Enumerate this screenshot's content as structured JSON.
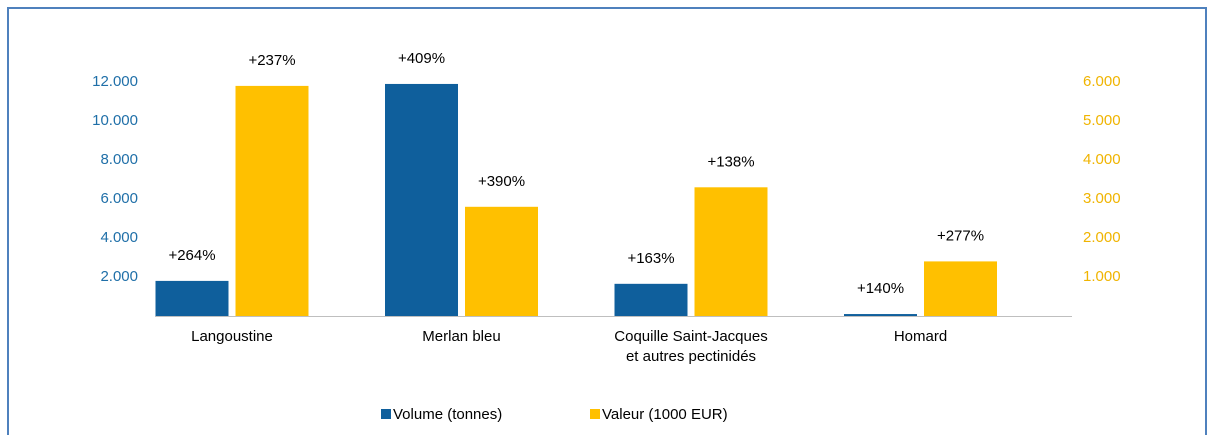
{
  "chart_data": {
    "type": "bar",
    "categories": [
      "Langoustine",
      "Merlan bleu",
      "Coquille Saint-Jacques\net autres pectinidés",
      "Homard"
    ],
    "series": [
      {
        "name": "Volume (tonnes)",
        "color": "#0f5f9c",
        "axis": "y",
        "values": [
          1800,
          11900,
          1650,
          100
        ],
        "annotations": [
          "+264%",
          "+409%",
          "+163%",
          "+140%"
        ]
      },
      {
        "name": "Valeur (1000 EUR)",
        "color": "#ffc000",
        "axis": "y2",
        "values": [
          5900,
          2800,
          3300,
          1400
        ],
        "annotations": [
          "+237%",
          "+390%",
          "+138%",
          "+277%"
        ]
      }
    ],
    "ylim": [
      0,
      12000
    ],
    "yticks": [
      {
        "value": 2000,
        "label": "2.000"
      },
      {
        "value": 4000,
        "label": "4.000"
      },
      {
        "value": 6000,
        "label": "6.000"
      },
      {
        "value": 8000,
        "label": "8.000"
      },
      {
        "value": 10000,
        "label": "10.000"
      },
      {
        "value": 12000,
        "label": "12.000"
      }
    ],
    "y2lim": [
      0,
      6000
    ],
    "y2ticks": [
      {
        "value": 1000,
        "label": "1.000"
      },
      {
        "value": 2000,
        "label": "2.000"
      },
      {
        "value": 3000,
        "label": "3.000"
      },
      {
        "value": 4000,
        "label": "4.000"
      },
      {
        "value": 5000,
        "label": "5.000"
      },
      {
        "value": 6000,
        "label": "6.000"
      }
    ],
    "legend": "bottom",
    "grid": false
  }
}
